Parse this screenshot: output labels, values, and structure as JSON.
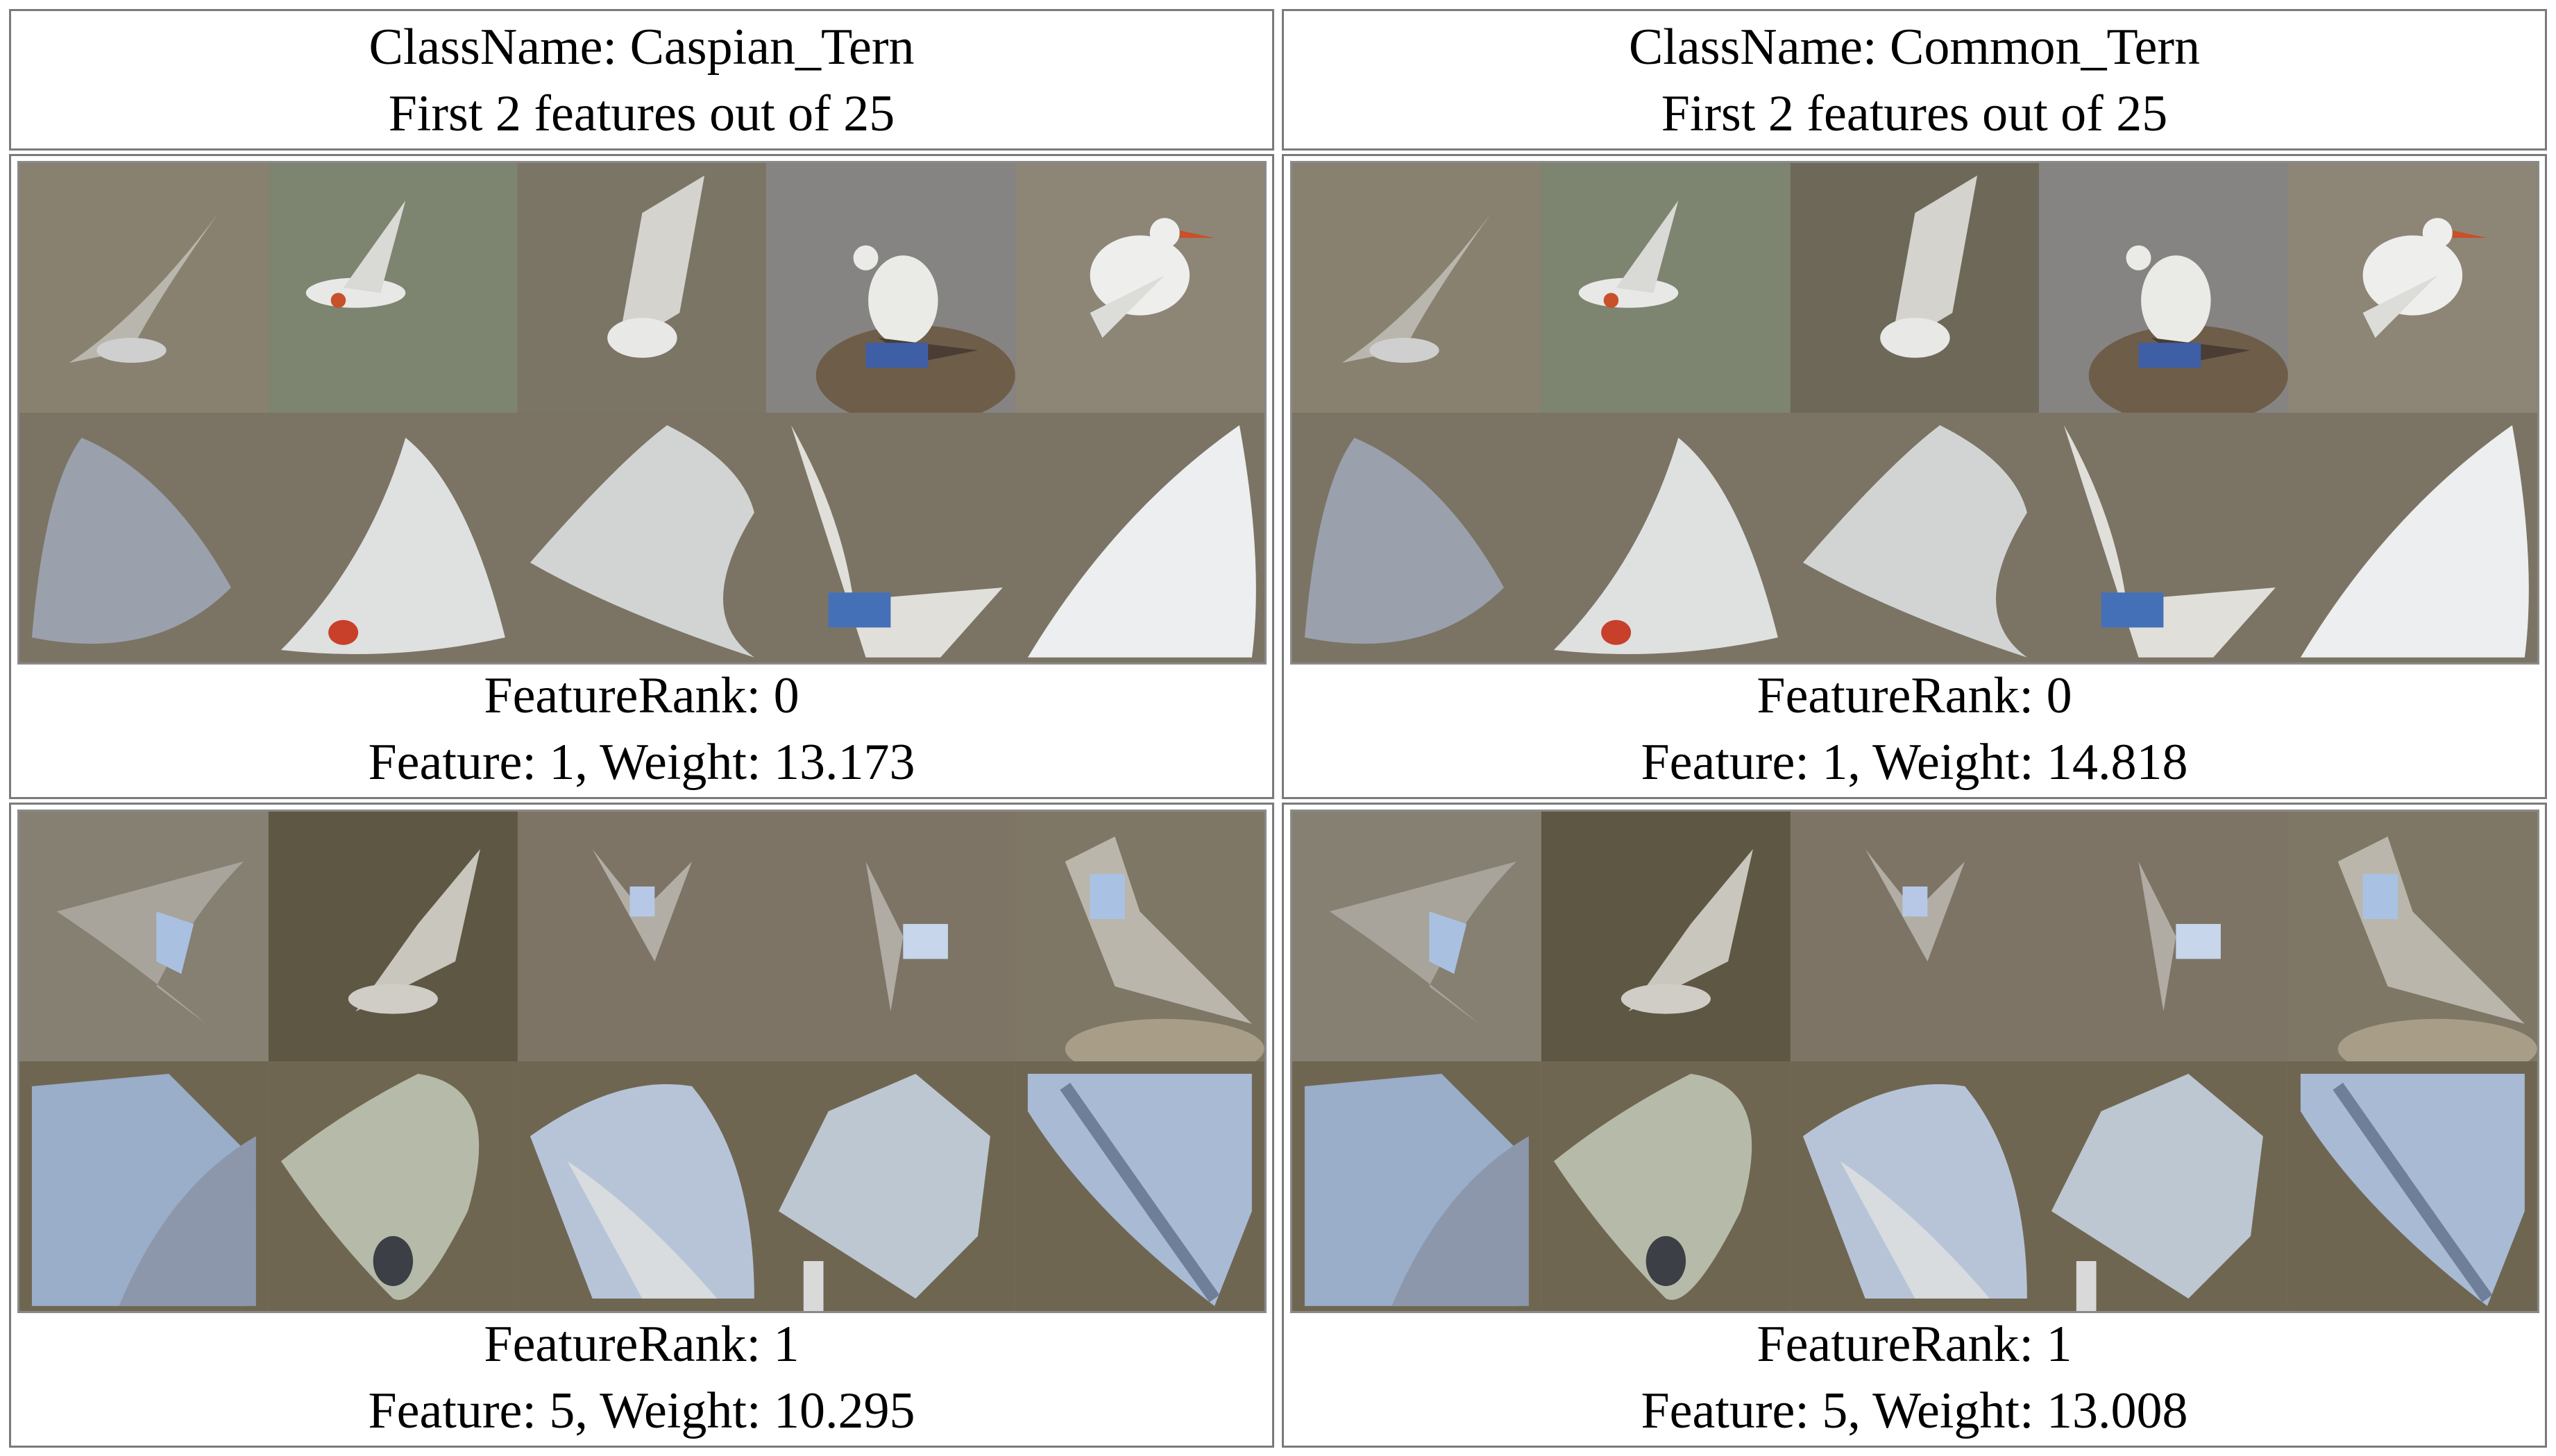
{
  "columns": [
    {
      "header": {
        "class_line": "ClassName: Caspian_Tern",
        "features_line": "First 2 features out of 25"
      },
      "features": [
        {
          "rank_line": "FeatureRank: 0",
          "weight_line": "Feature: 1, Weight: 13.173"
        },
        {
          "rank_line": "FeatureRank: 1",
          "weight_line": "Feature: 5, Weight: 10.295"
        }
      ]
    },
    {
      "header": {
        "class_line": "ClassName: Common_Tern",
        "features_line": "First 2 features out of 25"
      },
      "features": [
        {
          "rank_line": "FeatureRank: 0",
          "weight_line": "Feature: 1, Weight: 14.818"
        },
        {
          "rank_line": "FeatureRank: 1",
          "weight_line": "Feature: 5, Weight: 13.008"
        }
      ]
    }
  ],
  "colors": {
    "border": "#7a7a7a",
    "tile_background": "#7b7464",
    "bird_white": "#e8e8e6",
    "beak_red": "#c8502a"
  },
  "icons": [
    "bird-photo-thumbnail",
    "bird-part-crop"
  ]
}
